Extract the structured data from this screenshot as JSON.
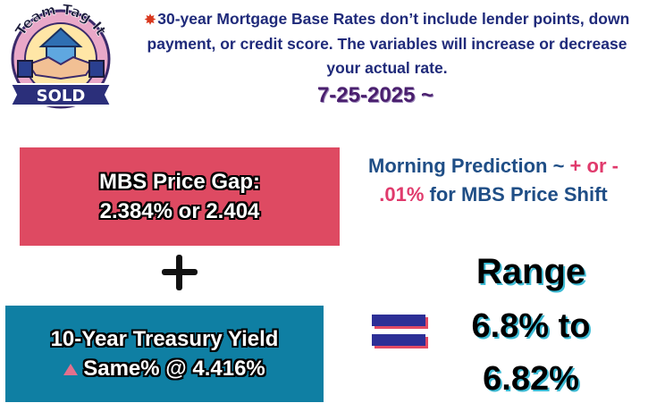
{
  "logo": {
    "arc_text": "Team Tag It",
    "banner_text": "SOLD",
    "icon": "handshake-house-icon"
  },
  "notice": {
    "icon": "collision-icon",
    "text": "30-year Mortgage Base Rates don’t include lender points, down payment, or credit score. The variables will increase or decrease your actual rate."
  },
  "date_label": "7-25-2025 ~",
  "mbs_box": {
    "line1": "MBS Price Gap:",
    "line2": "2.384% or 2.404"
  },
  "prediction": {
    "prefix": "Morning Prediction ~ ",
    "change": "+ or - .01%",
    "suffix": " for MBS Price Shift"
  },
  "treasury_box": {
    "line1": "10-Year Treasury Yield",
    "line2": "Same% @ 4.416%",
    "indicator": "up-triangle-icon"
  },
  "operators": {
    "plus": "plus-icon",
    "equals": "equals-icon"
  },
  "range": {
    "title": "Range",
    "line1": "6.8% to",
    "line2": "6.82%"
  },
  "colors": {
    "mbs_box": "#de4a62",
    "treasury_box": "#0f7fa3",
    "notice_text": "#1f2a7a",
    "date_text": "#4a1f6e",
    "prediction_text": "#1f4e86",
    "accent": "#e03a6c",
    "range_shadow": "#3dbbd4"
  }
}
